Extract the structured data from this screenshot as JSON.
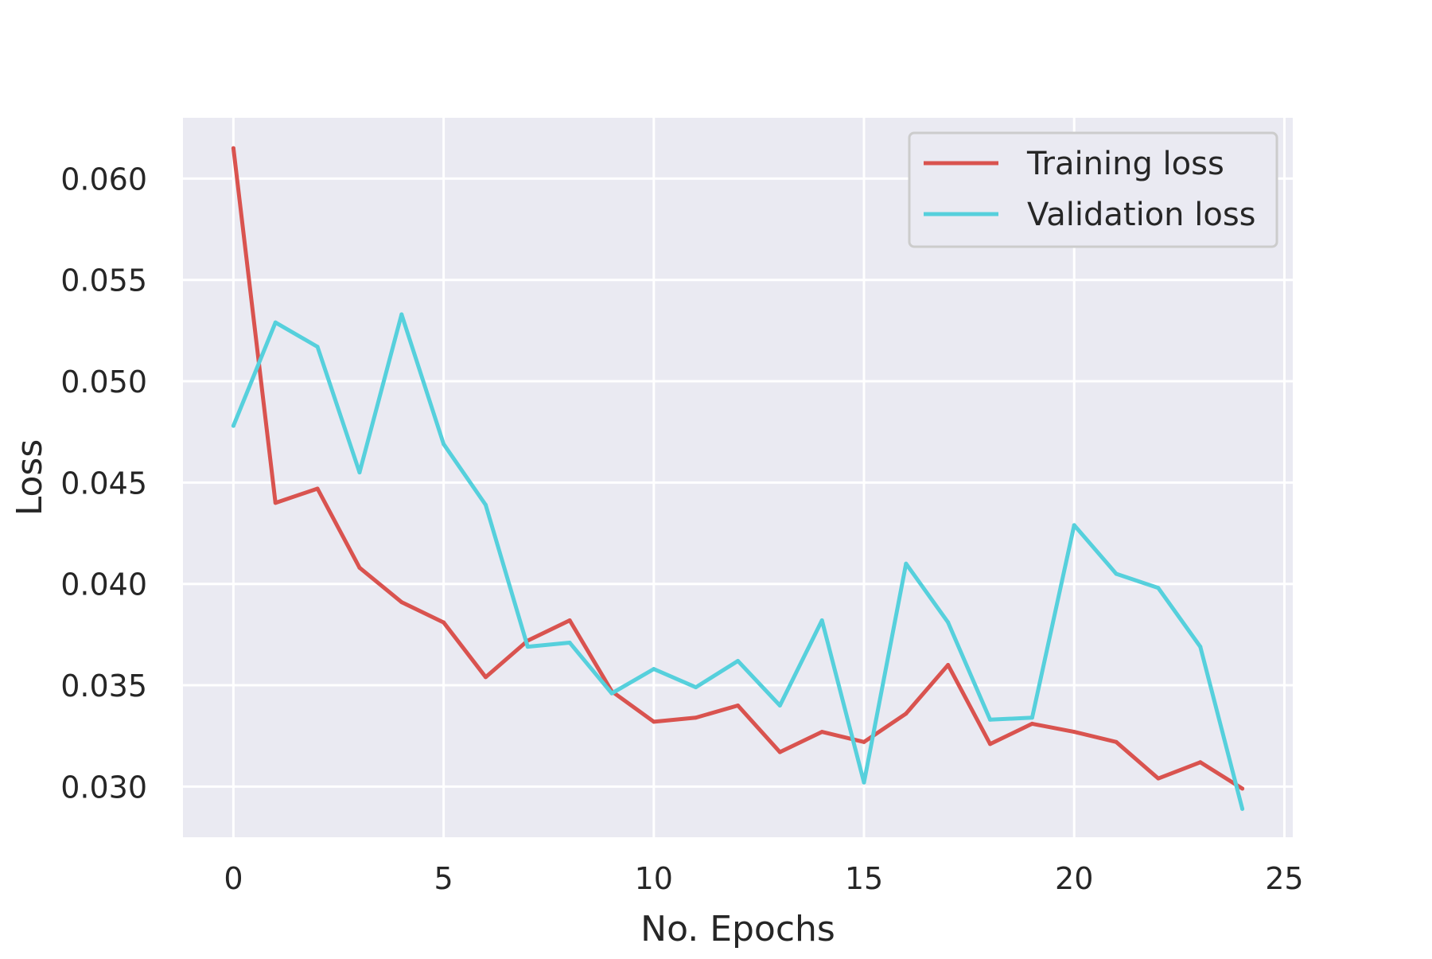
{
  "chart_data": {
    "type": "line",
    "title": "",
    "xlabel": "No. Epochs",
    "ylabel": "Loss",
    "x": [
      0,
      1,
      2,
      3,
      4,
      5,
      6,
      7,
      8,
      9,
      10,
      11,
      12,
      13,
      14,
      15,
      16,
      17,
      18,
      19,
      20,
      21,
      22,
      23,
      24
    ],
    "series": [
      {
        "name": "Training loss",
        "color": "#d9534f",
        "values": [
          0.0615,
          0.044,
          0.0447,
          0.0408,
          0.0391,
          0.0381,
          0.0354,
          0.0372,
          0.0382,
          0.0347,
          0.0332,
          0.0334,
          0.034,
          0.0317,
          0.0327,
          0.0322,
          0.0336,
          0.036,
          0.0321,
          0.0331,
          0.0327,
          0.0322,
          0.0304,
          0.0312,
          0.0299
        ]
      },
      {
        "name": "Validation loss",
        "color": "#56d0dc",
        "values": [
          0.0478,
          0.0529,
          0.0517,
          0.0455,
          0.0533,
          0.0469,
          0.0439,
          0.0369,
          0.0371,
          0.0346,
          0.0358,
          0.0349,
          0.0362,
          0.034,
          0.0382,
          0.0302,
          0.041,
          0.0381,
          0.0333,
          0.0334,
          0.0429,
          0.0405,
          0.0398,
          0.0369,
          0.0289
        ]
      }
    ],
    "xlim": [
      -1.2,
      25.2
    ],
    "ylim": [
      0.0275,
      0.063
    ],
    "xticks": [
      0,
      5,
      10,
      15,
      20,
      25
    ],
    "xtick_labels": [
      "0",
      "5",
      "10",
      "15",
      "20",
      "25"
    ],
    "yticks": [
      0.03,
      0.035,
      0.04,
      0.045,
      0.05,
      0.055,
      0.06
    ],
    "ytick_labels": [
      "0.030",
      "0.035",
      "0.040",
      "0.045",
      "0.050",
      "0.055",
      "0.060"
    ],
    "grid": true,
    "legend_position": "top-right",
    "background_color": "#eaeaf2",
    "grid_color": "#ffffff"
  }
}
